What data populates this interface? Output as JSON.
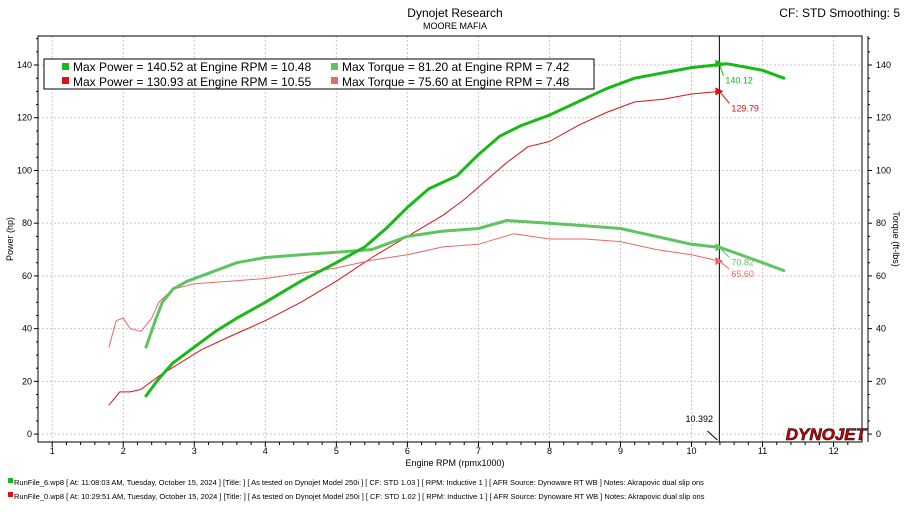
{
  "header": {
    "title": "Dynojet Research",
    "subtitle": "MOORE MAFIA",
    "settings": "CF: STD Smoothing: 5"
  },
  "logo": {
    "text": "DYNOJET",
    "colors": {
      "primary": "#cc0000",
      "accent": "#1a1a1a"
    }
  },
  "cursor": {
    "label": "10.392",
    "x": 10.392
  },
  "legend": {
    "run1": {
      "power": "Max Power = 140.52 at Engine RPM = 10.48",
      "torque": "Max Torque = 81.20 at Engine RPM = 7.42"
    },
    "run2": {
      "power": "Max Power = 130.93 at Engine RPM = 10.55",
      "torque": "Max Torque = 75.60 at Engine RPM = 7.48"
    }
  },
  "footer": {
    "run1": "RunFile_6.wp8 [ At: 11:08:03 AM, Tuesday, October 15, 2024 ] [Title: ] [ As tested on Dynojet Model 250i ] [ CF: STD 1.03 ] [ RPM: Inductive 1 ] [ AFR Source: Dynoware RT WB ] Notes: Akrapovic dual slip ons",
    "run2": "RunFile_0.wp8 [ At: 10:29:51 AM, Tuesday, October 15, 2024 ] [Title: ] [ As tested on Dynojet Model 250i ] [ CF: STD 1.02 ] [ RPM: Inductive 1 ] [ AFR Source: Dynoware RT WB ] Notes: Akrapovic dual slip ons"
  },
  "chart_data": {
    "type": "line",
    "xlabel": "Engine RPM (rpmx1000)",
    "ylabel_left": "Power (hp)",
    "ylabel_right": "Torque (ft-lbs)",
    "xlim": [
      0.8,
      12.4
    ],
    "ylim": [
      -3,
      151
    ],
    "x_ticks": [
      1,
      2,
      3,
      4,
      5,
      6,
      7,
      8,
      9,
      10,
      11,
      12
    ],
    "y_ticks": [
      0,
      20,
      40,
      60,
      80,
      100,
      120,
      140
    ],
    "grid": true,
    "legend_position": "top-left",
    "series": [
      {
        "name": "Max Power = 140.52 at Engine RPM = 10.48",
        "color": "#1ab81a",
        "width": 3,
        "points": [
          [
            2.32,
            14.5
          ],
          [
            2.5,
            21
          ],
          [
            2.7,
            27
          ],
          [
            3.0,
            33
          ],
          [
            3.3,
            39
          ],
          [
            3.6,
            44
          ],
          [
            4.0,
            50
          ],
          [
            4.5,
            58
          ],
          [
            5.0,
            65
          ],
          [
            5.4,
            71
          ],
          [
            5.7,
            78
          ],
          [
            6.0,
            86
          ],
          [
            6.3,
            93
          ],
          [
            6.7,
            98
          ],
          [
            7.0,
            106
          ],
          [
            7.3,
            113
          ],
          [
            7.6,
            117
          ],
          [
            8.0,
            121
          ],
          [
            8.4,
            126
          ],
          [
            8.8,
            131
          ],
          [
            9.2,
            135
          ],
          [
            9.6,
            137
          ],
          [
            10.0,
            139
          ],
          [
            10.5,
            140.5
          ],
          [
            10.8,
            139
          ],
          [
            11.0,
            138
          ],
          [
            11.3,
            135
          ]
        ],
        "end_label": "140.12"
      },
      {
        "name": "Max Power = 130.93 at Engine RPM = 10.55",
        "color": "#dd1111",
        "width": 1,
        "points": [
          [
            1.8,
            11
          ],
          [
            1.95,
            16
          ],
          [
            2.1,
            16
          ],
          [
            2.25,
            17
          ],
          [
            2.5,
            22
          ],
          [
            2.8,
            27
          ],
          [
            3.1,
            32
          ],
          [
            3.5,
            37
          ],
          [
            4.0,
            43
          ],
          [
            4.5,
            50
          ],
          [
            5.0,
            58
          ],
          [
            5.5,
            67
          ],
          [
            6.0,
            75
          ],
          [
            6.5,
            83
          ],
          [
            6.8,
            89
          ],
          [
            7.1,
            96
          ],
          [
            7.4,
            103
          ],
          [
            7.7,
            109
          ],
          [
            8.0,
            111
          ],
          [
            8.4,
            117
          ],
          [
            8.8,
            122
          ],
          [
            9.2,
            126
          ],
          [
            9.6,
            127
          ],
          [
            10.0,
            129
          ],
          [
            10.4,
            130
          ]
        ],
        "end_label": "129.79"
      },
      {
        "name": "Max Torque = 81.20 at Engine RPM = 7.42",
        "color": "#5fc45f",
        "width": 3,
        "points": [
          [
            2.32,
            33
          ],
          [
            2.45,
            43
          ],
          [
            2.55,
            50
          ],
          [
            2.7,
            55
          ],
          [
            2.9,
            58
          ],
          [
            3.2,
            61
          ],
          [
            3.6,
            65
          ],
          [
            4.0,
            67
          ],
          [
            4.5,
            68
          ],
          [
            5.0,
            69
          ],
          [
            5.5,
            70
          ],
          [
            6.0,
            75
          ],
          [
            6.5,
            77
          ],
          [
            7.0,
            78
          ],
          [
            7.4,
            81
          ],
          [
            8.0,
            80
          ],
          [
            8.5,
            79
          ],
          [
            9.0,
            78
          ],
          [
            9.5,
            75
          ],
          [
            10.0,
            72
          ],
          [
            10.4,
            70.8
          ],
          [
            10.8,
            67
          ],
          [
            11.0,
            65
          ],
          [
            11.3,
            62
          ]
        ],
        "end_label": "70.82"
      },
      {
        "name": "Max Torque = 75.60 at Engine RPM = 7.48",
        "color": "#ee6666",
        "width": 1,
        "points": [
          [
            1.8,
            33
          ],
          [
            1.9,
            43
          ],
          [
            2.0,
            44
          ],
          [
            2.1,
            40
          ],
          [
            2.25,
            39
          ],
          [
            2.4,
            44
          ],
          [
            2.5,
            50
          ],
          [
            2.7,
            55
          ],
          [
            3.0,
            57
          ],
          [
            3.5,
            58
          ],
          [
            4.0,
            59
          ],
          [
            4.5,
            61
          ],
          [
            5.0,
            63
          ],
          [
            5.5,
            66
          ],
          [
            6.0,
            68
          ],
          [
            6.5,
            71
          ],
          [
            7.0,
            72
          ],
          [
            7.5,
            76
          ],
          [
            8.0,
            74
          ],
          [
            8.5,
            74
          ],
          [
            9.0,
            73
          ],
          [
            9.5,
            70
          ],
          [
            10.0,
            68
          ],
          [
            10.4,
            65.6
          ]
        ],
        "end_label": "65.60"
      }
    ]
  }
}
